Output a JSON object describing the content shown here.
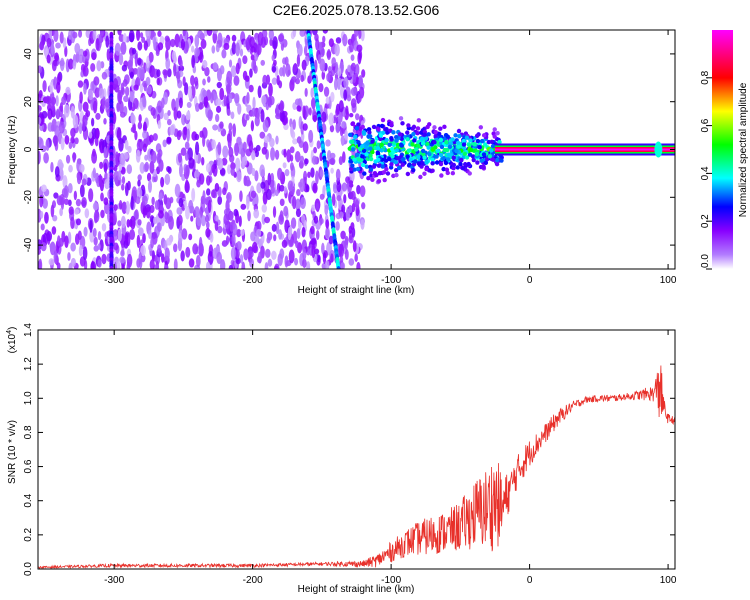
{
  "title": "C2E6.2025.078.13.52.G06",
  "colors": {
    "background": "#ffffff",
    "axis": "#000000",
    "snr_line": "#e8302a",
    "spectrum_noise": "#7b2cf0",
    "spectrum_signal": "#ff2a5a"
  },
  "chart_data": [
    {
      "type": "heatmap",
      "xlabel": "Height of straight line (km)",
      "ylabel": "Frequency (Hz)",
      "xlim": [
        -355,
        105
      ],
      "ylim": [
        -50,
        50
      ],
      "x_ticks": [
        -300,
        -200,
        -100,
        0,
        100
      ],
      "y_ticks": [
        -40,
        -20,
        0,
        20,
        40
      ],
      "colorbar": {
        "label": "Normalized spectral amplitude",
        "range": [
          0.0,
          1.0
        ],
        "ticks": [
          0.0,
          0.2,
          0.4,
          0.6,
          0.8
        ],
        "colormap": [
          "#ffffff",
          "#8800ff",
          "#0000ff",
          "#00ffff",
          "#00ff00",
          "#ffff00",
          "#ff0000",
          "#ff00ff"
        ]
      },
      "features": [
        {
          "kind": "noise_field",
          "x_range": [
            -355,
            -120
          ],
          "y_range": [
            -50,
            50
          ],
          "amplitude": 0.15
        },
        {
          "kind": "drift_line",
          "from": [
            -160,
            50
          ],
          "to": [
            -138,
            -50
          ],
          "amplitude": 0.35
        },
        {
          "kind": "drift_line",
          "from": [
            -302,
            48
          ],
          "to": [
            -302,
            -50
          ],
          "amplitude": 0.2
        },
        {
          "kind": "blob",
          "x_range": [
            -130,
            -20
          ],
          "y_center": 0,
          "y_width": 8,
          "amplitude": 0.4
        },
        {
          "kind": "carrier",
          "x_range": [
            -25,
            105
          ],
          "y": 0,
          "amplitude": 1.0
        },
        {
          "kind": "spot",
          "x": 93,
          "y": 0,
          "amplitude": 0.4
        }
      ]
    },
    {
      "type": "line",
      "xlabel": "Height of straight line (km)",
      "ylabel": "SNR (10 * v/v)",
      "y_multiplier": "(x10",
      "y_multiplier_exp": "4",
      "xlim": [
        -355,
        105
      ],
      "ylim": [
        0.0,
        1.4
      ],
      "x_ticks": [
        -300,
        -200,
        -100,
        0,
        100
      ],
      "y_ticks": [
        "0.0",
        "0.2",
        "0.4",
        "0.6",
        "0.8",
        "1.0",
        "1.2",
        "1.4"
      ],
      "series": [
        {
          "x": [
            -355,
            -300,
            -250,
            -200,
            -150,
            -120,
            -110,
            -100,
            -90,
            -80,
            -70,
            -60,
            -50,
            -40,
            -30,
            -25,
            -20,
            -15,
            -10,
            -5,
            0,
            10,
            20,
            30,
            40,
            50,
            60,
            70,
            80,
            90,
            92,
            94,
            96,
            98,
            100,
            105
          ],
          "y": [
            0.01,
            0.02,
            0.02,
            0.02,
            0.03,
            0.03,
            0.05,
            0.1,
            0.15,
            0.18,
            0.2,
            0.22,
            0.25,
            0.32,
            0.36,
            0.4,
            0.35,
            0.45,
            0.55,
            0.62,
            0.68,
            0.78,
            0.88,
            0.95,
            0.99,
            1.0,
            1.0,
            1.01,
            1.02,
            1.03,
            1.06,
            1.1,
            0.98,
            0.92,
            0.88,
            0.87
          ],
          "spread": [
            0.005,
            0.01,
            0.01,
            0.01,
            0.01,
            0.02,
            0.04,
            0.06,
            0.08,
            0.1,
            0.12,
            0.12,
            0.15,
            0.2,
            0.25,
            0.3,
            0.2,
            0.12,
            0.1,
            0.1,
            0.08,
            0.06,
            0.05,
            0.03,
            0.02,
            0.02,
            0.02,
            0.02,
            0.03,
            0.05,
            0.1,
            0.3,
            0.08,
            0.04,
            0.03,
            0.02
          ]
        }
      ]
    }
  ]
}
